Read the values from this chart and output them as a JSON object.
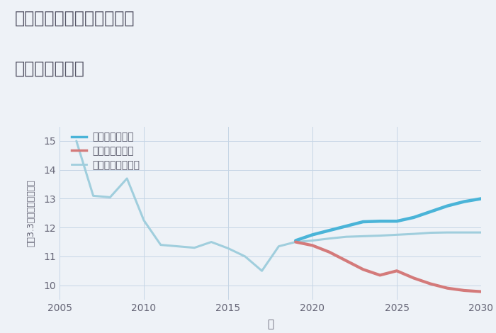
{
  "title_line1": "三重県桑名市長島町駒江の",
  "title_line2": "土地の価格推移",
  "xlabel": "年",
  "ylabel": "坪（3.3㎡）単価（万円）",
  "background_color": "#eef2f7",
  "plot_bg_color": "#eef2f7",
  "ylim": [
    9.5,
    15.5
  ],
  "xlim": [
    2005,
    2030
  ],
  "yticks": [
    10,
    11,
    12,
    13,
    14,
    15
  ],
  "xticks": [
    2005,
    2010,
    2015,
    2020,
    2025,
    2030
  ],
  "good_scenario": {
    "years": [
      2019,
      2020,
      2021,
      2022,
      2023,
      2024,
      2025,
      2026,
      2027,
      2028,
      2029,
      2030
    ],
    "values": [
      11.55,
      11.75,
      11.9,
      12.05,
      12.2,
      12.22,
      12.22,
      12.35,
      12.55,
      12.75,
      12.9,
      13.0
    ],
    "color": "#4ab4d8",
    "label": "グッドシナリオ",
    "linewidth": 3.2
  },
  "bad_scenario": {
    "years": [
      2019,
      2020,
      2021,
      2022,
      2023,
      2024,
      2025,
      2026,
      2027,
      2028,
      2029,
      2030
    ],
    "values": [
      11.5,
      11.38,
      11.15,
      10.85,
      10.55,
      10.35,
      10.5,
      10.25,
      10.05,
      9.9,
      9.82,
      9.78
    ],
    "color": "#d47a7a",
    "label": "バッドシナリオ",
    "linewidth": 3.0
  },
  "normal_scenario": {
    "years": [
      2006,
      2007,
      2008,
      2009,
      2010,
      2011,
      2012,
      2013,
      2014,
      2015,
      2016,
      2017,
      2018,
      2019,
      2020,
      2021,
      2022,
      2023,
      2024,
      2025,
      2026,
      2027,
      2028,
      2029,
      2030
    ],
    "values": [
      15.0,
      13.1,
      13.05,
      13.7,
      12.25,
      11.4,
      11.35,
      11.3,
      11.5,
      11.28,
      11.0,
      10.5,
      11.35,
      11.5,
      11.55,
      11.62,
      11.68,
      11.7,
      11.72,
      11.75,
      11.78,
      11.82,
      11.83,
      11.83,
      11.83
    ],
    "color": "#a0cedd",
    "label": "ノーマルシナリオ",
    "linewidth": 2.2
  },
  "grid_color": "#c5d5e5",
  "title_color": "#555566",
  "tick_color": "#666677",
  "legend_color": "#555566"
}
